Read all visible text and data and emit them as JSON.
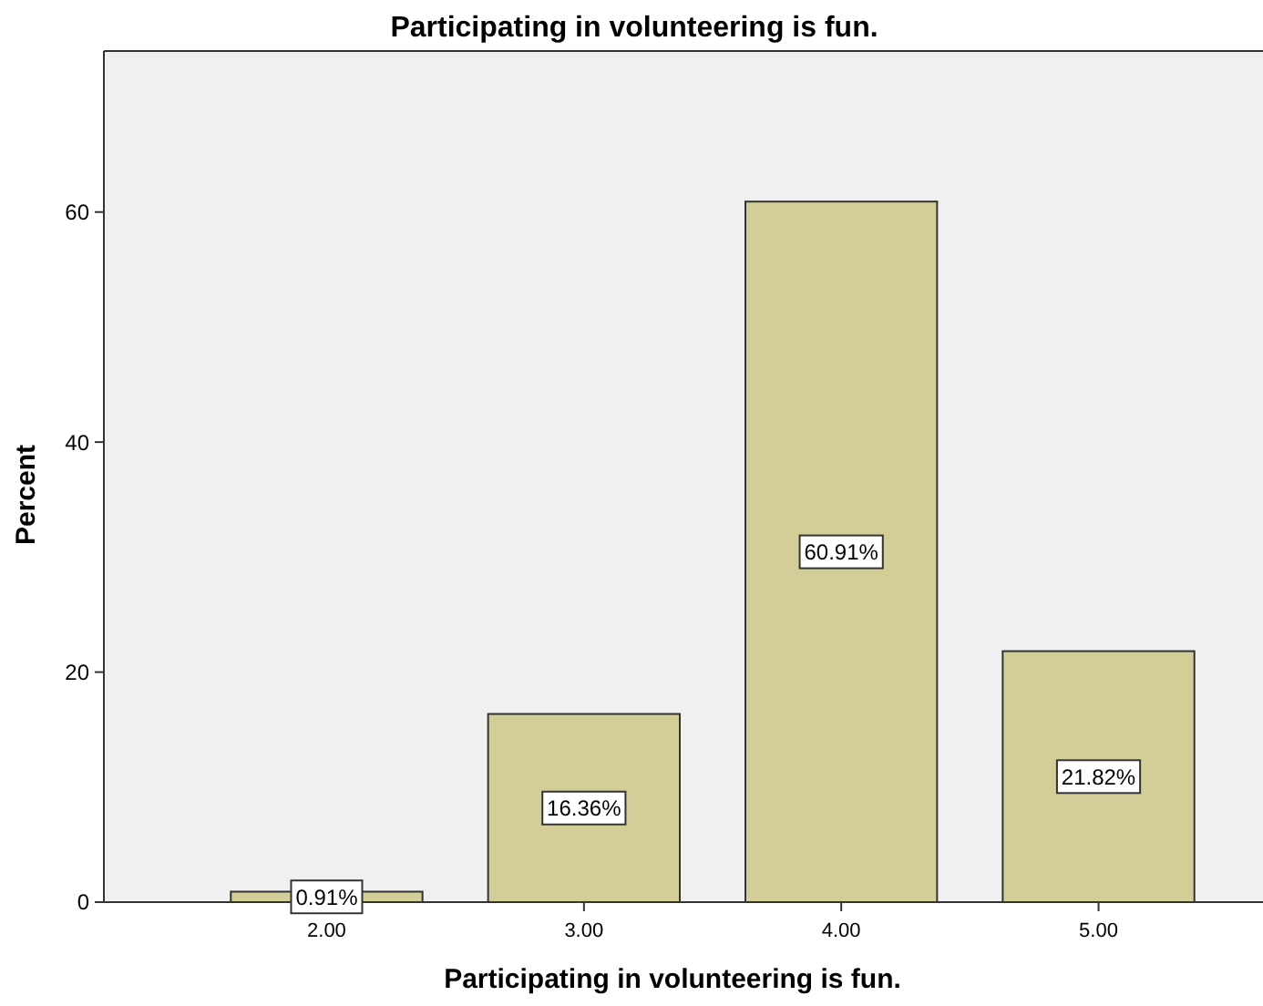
{
  "chart_data": {
    "type": "bar",
    "title": "Participating in volunteering is fun.",
    "xlabel": "Participating in volunteering is fun.",
    "ylabel": "Percent",
    "categories": [
      "2.00",
      "3.00",
      "4.00",
      "5.00"
    ],
    "values": [
      0.91,
      16.36,
      60.91,
      21.82
    ],
    "value_labels": [
      "0.91%",
      "16.36%",
      "60.91%",
      "21.82%"
    ],
    "color": "#d3ce98",
    "ylim": [
      0,
      74
    ],
    "yticks": [
      0,
      20,
      40,
      60
    ],
    "grid": false
  }
}
